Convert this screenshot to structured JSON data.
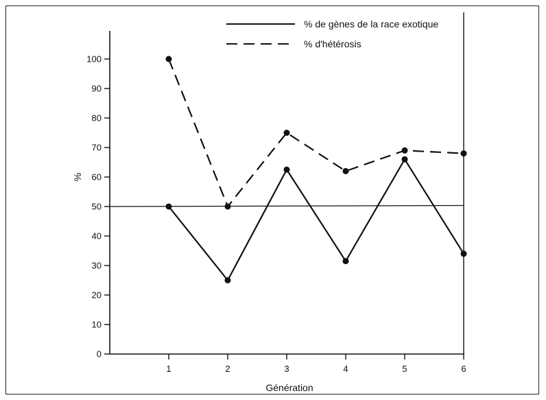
{
  "chart_data": {
    "type": "line",
    "x": [
      1,
      2,
      3,
      4,
      5,
      6
    ],
    "series": [
      {
        "name": "% de gènes de la race exotique",
        "style": "solid",
        "values": [
          50,
          25,
          62.5,
          31.5,
          66,
          34
        ]
      },
      {
        "name": "% d'hétérosis",
        "style": "dashed",
        "values": [
          100,
          50,
          75,
          62,
          69,
          68
        ]
      }
    ],
    "reference_line": {
      "y": 50
    },
    "xlabel": "Génération",
    "ylabel": "%",
    "xlim": [
      0,
      6
    ],
    "ylim": [
      0,
      110
    ],
    "yticks": [
      0,
      10,
      20,
      30,
      40,
      50,
      60,
      70,
      80,
      90,
      100
    ],
    "xticks": [
      1,
      2,
      3,
      4,
      5,
      6
    ],
    "legend_position": "top-center",
    "grid": false,
    "colors": {
      "line": "#111111",
      "marker": "#111111"
    }
  }
}
